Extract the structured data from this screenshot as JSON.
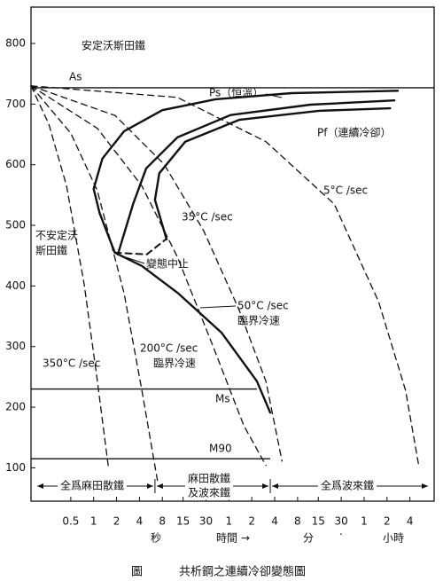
{
  "chart_data": {
    "type": "line",
    "x_scale": "log",
    "xlim": [
      0.15,
      30000
    ],
    "ylim": [
      45,
      860
    ],
    "yticks": [
      100,
      200,
      300,
      400,
      500,
      600,
      700,
      800
    ],
    "xticks": [
      0.5,
      1,
      2,
      4,
      8,
      15,
      30,
      {
        "value": 60,
        "label": "1"
      },
      {
        "value": 120,
        "label": "2"
      },
      {
        "value": 240,
        "label": "4"
      },
      {
        "value": 480,
        "label": "8"
      },
      {
        "value": 900,
        "label": "15"
      },
      {
        "value": 1800,
        "label": "30"
      },
      {
        "value": 3600,
        "label": "1"
      },
      {
        "value": 7200,
        "label": "2"
      },
      {
        "value": 14400,
        "label": "4"
      }
    ],
    "time_units": [
      "秒",
      "時間 →",
      "分",
      "·",
      "小時"
    ],
    "series": [
      {
        "name": "Ps（恒溫）",
        "color": "#111",
        "line_style": "solid",
        "line_width": 2.4,
        "x": [
          210,
          140,
          48,
          12.6,
          4.3,
          1.9,
          1.2,
          1.0,
          1.3,
          2.5,
          8,
          40,
          400,
          10000
        ],
        "values": [
          191,
          243,
          323,
          389,
          433,
          455,
          520,
          560,
          610,
          655,
          690,
          708,
          718,
          722
        ]
      },
      {
        "color": "#111",
        "line_style": "solid",
        "line_width": 2.4,
        "x": [
          2.08,
          3.3,
          4.9,
          12.6,
          63,
          710,
          9000
        ],
        "values": [
          452,
          535,
          594,
          645,
          682,
          699,
          706
        ]
      },
      {
        "name": "Pf（連續冷卻）",
        "color": "#111",
        "line_style": "solid",
        "line_width": 2.4,
        "x": [
          9.1,
          6.4,
          7.3,
          16,
          82,
          920,
          7900
        ],
        "values": [
          477,
          542,
          586,
          638,
          674,
          689,
          693
        ]
      },
      {
        "color": "#111",
        "line_style": "dashed",
        "line_width": 2,
        "x": [
          1.9,
          5,
          9.1
        ],
        "values": [
          455,
          452,
          478
        ]
      },
      {
        "name": "350°C /sec",
        "color": "#111",
        "line_style": "dashed",
        "line_width": 1.3,
        "x": [
          0.15,
          0.257,
          0.44,
          0.75,
          1.12,
          1.55
        ],
        "values": [
          730,
          667,
          565,
          403,
          243,
          104
        ]
      },
      {
        "name": "200°C /sec",
        "color": "#111",
        "line_style": "dashed",
        "line_width": 1.3,
        "x": [
          0.15,
          0.5,
          1.12,
          2.5,
          4.3,
          7
        ],
        "values": [
          730,
          652,
          557,
          389,
          228,
          74
        ]
      },
      {
        "name": "50°C /sec",
        "color": "#111",
        "line_style": "dashed",
        "line_width": 1.3,
        "x": [
          0.15,
          1.12,
          4.3,
          12.6,
          37,
          94,
          184
        ],
        "values": [
          730,
          660,
          565,
          448,
          301,
          170,
          104
        ]
      },
      {
        "name": "35°C /sec",
        "color": "#111",
        "line_style": "dashed",
        "line_width": 1.3,
        "x": [
          0.15,
          1.92,
          8.4,
          28,
          82,
          184,
          300
        ],
        "values": [
          730,
          681,
          601,
          491,
          360,
          243,
          111
        ]
      },
      {
        "name": "5°C /sec",
        "color": "#111",
        "line_style": "dashed",
        "line_width": 1.3,
        "x": [
          0.15,
          12.6,
          184,
          1460,
          5580,
          12600,
          18800
        ],
        "values": [
          730,
          711,
          638,
          535,
          374,
          228,
          104
        ]
      }
    ],
    "hlines": [
      {
        "label": "As",
        "value": 727
      },
      {
        "label": "Ms",
        "value": 230,
        "xmax": 140
      },
      {
        "label": "M90",
        "value": 115,
        "xmax": 210
      }
    ],
    "annotations": [
      "安定沃斯田鐵",
      "不安定沃",
      "斯田鐵",
      "臨界冷速",
      "臨界冷速",
      "變態中止"
    ],
    "regions": [
      "全爲麻田散鐵",
      "麻田散鐵",
      "及波來鐵",
      "全爲波來鐵"
    ],
    "region_edges": [
      6.4,
      210
    ],
    "caption": [
      "圖",
      "共析鋼之連續冷卻變態圖"
    ]
  }
}
